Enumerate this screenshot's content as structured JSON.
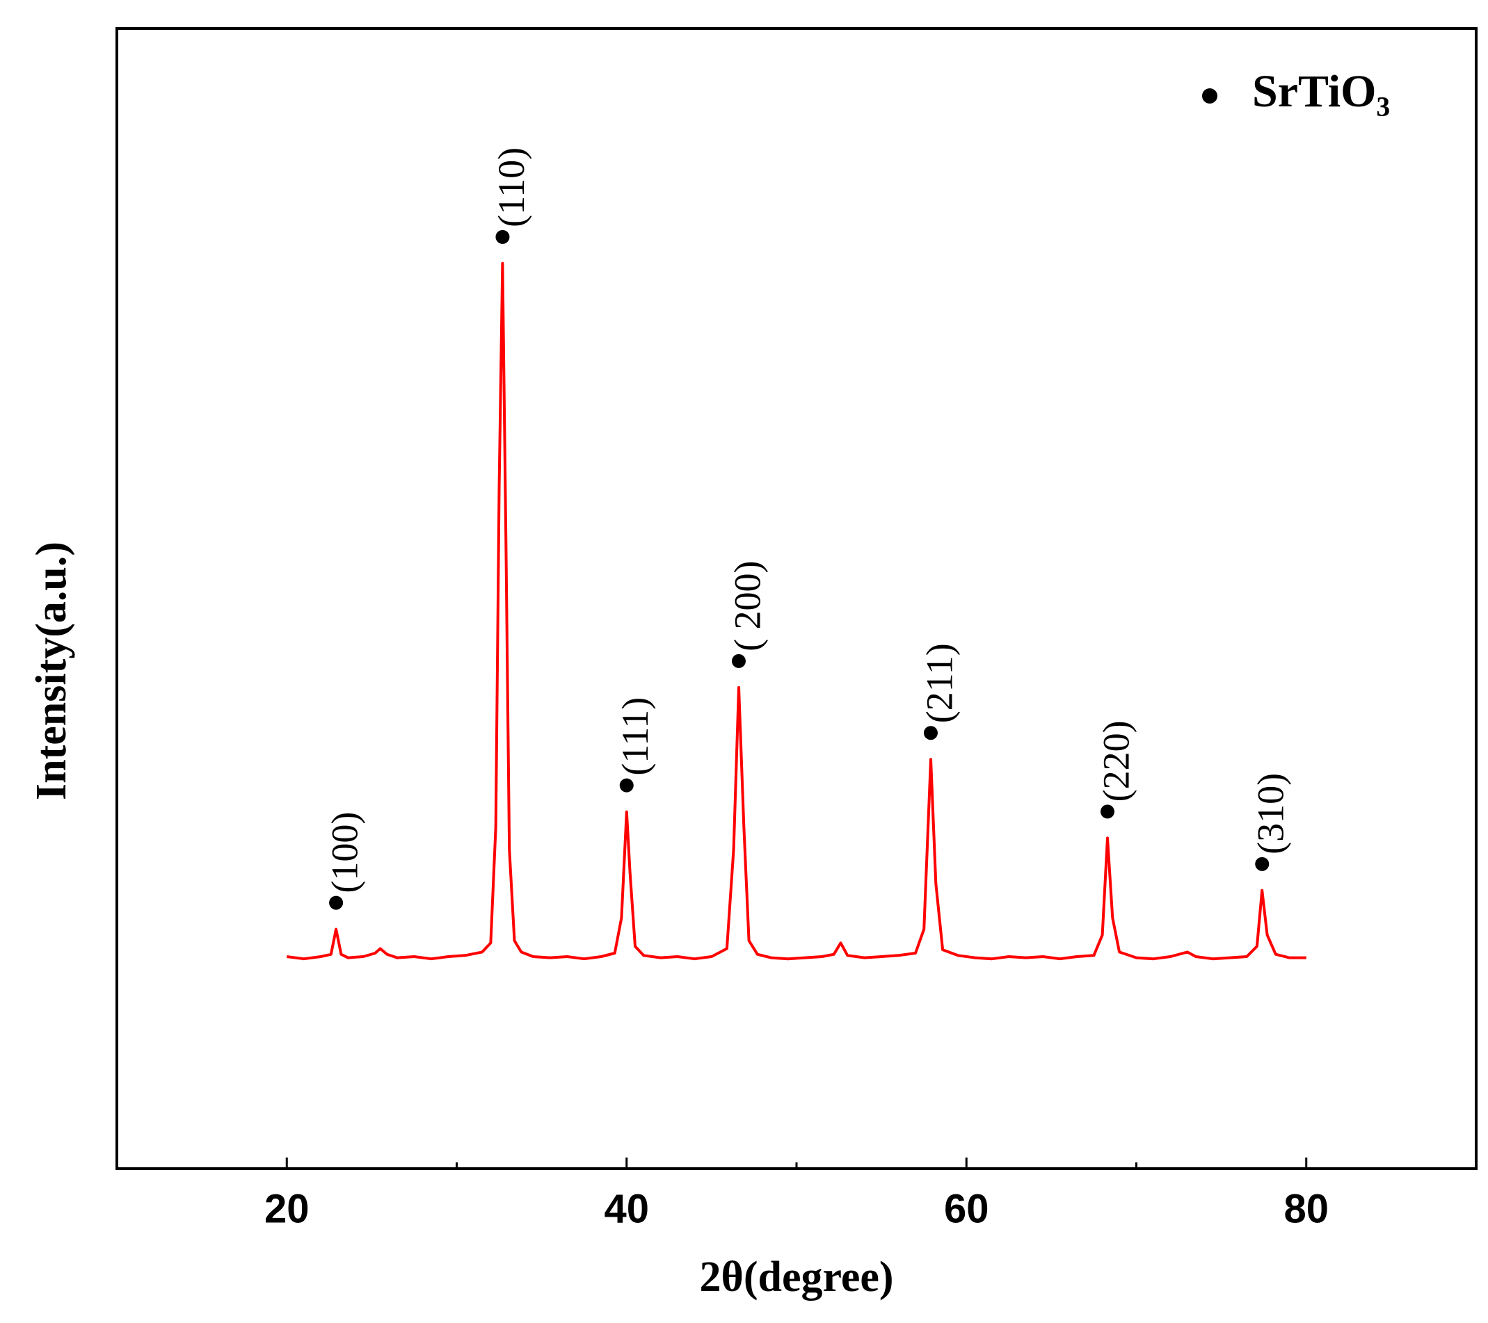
{
  "chart_data": {
    "type": "line",
    "xlabel": "2θ(degree)",
    "ylabel": "Intensity(a.u.)",
    "xlim": [
      10,
      90
    ],
    "ylim": [
      0,
      100
    ],
    "xticks": [
      20,
      40,
      60,
      80
    ],
    "xminorticks": [
      30,
      50,
      70
    ],
    "legend_position": "upper right",
    "x": [
      20,
      21,
      22,
      22.6,
      22.9,
      23.2,
      23.6,
      24.5,
      25.2,
      25.5,
      25.9,
      26.5,
      27.5,
      28.5,
      29.5,
      30.5,
      31.5,
      32.0,
      32.3,
      32.5,
      32.7,
      32.9,
      33.1,
      33.4,
      33.8,
      34.5,
      35.5,
      36.5,
      37.5,
      38.5,
      39.3,
      39.7,
      40.0,
      40.2,
      40.5,
      41,
      42,
      43,
      44,
      45,
      45.9,
      46.3,
      46.6,
      46.9,
      47.2,
      47.7,
      48.5,
      49.5,
      50.5,
      51.5,
      52.2,
      52.6,
      53,
      54,
      55,
      56,
      57,
      57.5,
      57.9,
      58.2,
      58.6,
      59.5,
      60.5,
      61.5,
      62.5,
      63.5,
      64.5,
      65.5,
      66.5,
      67.5,
      68.0,
      68.3,
      68.6,
      69,
      70,
      71,
      72,
      73,
      73.5,
      74.5,
      75.5,
      76.5,
      77.1,
      77.4,
      77.7,
      78.2,
      79,
      80
    ],
    "series": [
      {
        "name": "SrTiO₃",
        "color": "#ff0000",
        "values": [
          18.6,
          18.4,
          18.6,
          18.8,
          21.0,
          18.8,
          18.5,
          18.6,
          18.9,
          19.3,
          18.8,
          18.5,
          18.6,
          18.4,
          18.6,
          18.7,
          19.0,
          19.8,
          30,
          60,
          79.4,
          55,
          28,
          20,
          19,
          18.6,
          18.5,
          18.6,
          18.4,
          18.6,
          18.9,
          22,
          31.3,
          26,
          19.5,
          18.7,
          18.5,
          18.6,
          18.4,
          18.6,
          19.3,
          28,
          42.2,
          30,
          20,
          18.8,
          18.5,
          18.4,
          18.5,
          18.6,
          18.8,
          19.8,
          18.7,
          18.5,
          18.6,
          18.7,
          18.9,
          21,
          35.9,
          25,
          19.2,
          18.7,
          18.5,
          18.4,
          18.6,
          18.5,
          18.6,
          18.4,
          18.6,
          18.7,
          20.5,
          29,
          22,
          19,
          18.5,
          18.4,
          18.6,
          19.0,
          18.6,
          18.4,
          18.5,
          18.6,
          19.5,
          24.4,
          20.5,
          18.8,
          18.5,
          18.5
        ]
      }
    ],
    "annotations": [
      {
        "text": "(100)",
        "x": 22.9
      },
      {
        "text": "(110)",
        "x": 32.7
      },
      {
        "text": "(111)",
        "x": 40.0
      },
      {
        "text": "( 200)",
        "x": 46.6
      },
      {
        "text": "(211)",
        "x": 57.9
      },
      {
        "text": "(220)",
        "x": 68.3
      },
      {
        "text": "(310)",
        "x": 77.4
      }
    ]
  }
}
